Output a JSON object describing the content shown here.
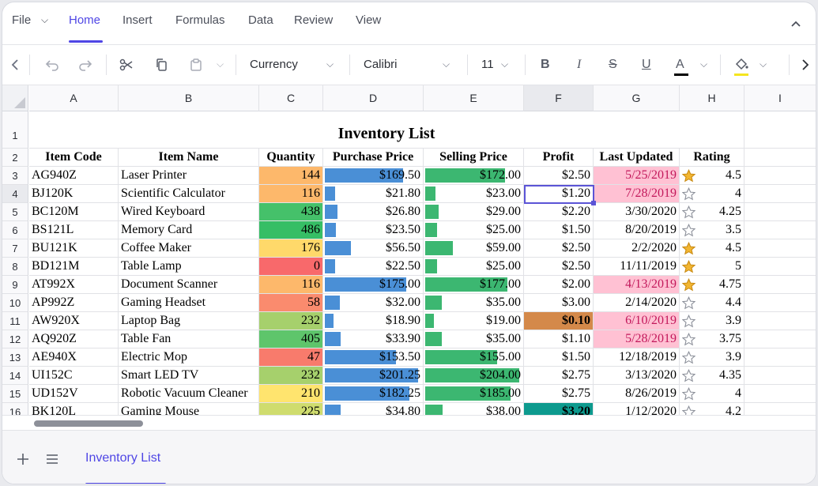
{
  "ribbon": {
    "tabs": [
      "File",
      "Home",
      "Insert",
      "Formulas",
      "Data",
      "Review",
      "View"
    ],
    "active_tab": "Home"
  },
  "toolbar": {
    "number_format": "Currency",
    "font_name": "Calibri",
    "font_size": "11",
    "font_color": "#000000",
    "fill_color": "#f5e51f"
  },
  "columns": [
    "A",
    "B",
    "C",
    "D",
    "E",
    "F",
    "G",
    "H",
    "I"
  ],
  "rows": [
    "1",
    "2",
    "3",
    "4",
    "5",
    "6",
    "7",
    "8",
    "9",
    "10",
    "11",
    "12",
    "13",
    "14",
    "15",
    "16"
  ],
  "sheet": {
    "title": "Inventory List",
    "headers": [
      "Item Code",
      "Item Name",
      "Quantity",
      "Purchase Price",
      "Selling Price",
      "Profit",
      "Last Updated",
      "Rating"
    ],
    "items": [
      {
        "code": "AG940Z",
        "name": "Laser Printer",
        "qty": "144",
        "purchase": "$169.50",
        "selling": "$172.00",
        "profit": "$2.50",
        "updated": "5/25/2019",
        "rating": "4.5"
      },
      {
        "code": "BJ120K",
        "name": "Scientific Calculator",
        "qty": "116",
        "purchase": "$21.80",
        "selling": "$23.00",
        "profit": "$1.20",
        "updated": "7/28/2019",
        "rating": "4"
      },
      {
        "code": "BC120M",
        "name": "Wired Keyboard",
        "qty": "438",
        "purchase": "$26.80",
        "selling": "$29.00",
        "profit": "$2.20",
        "updated": "3/30/2020",
        "rating": "4.25"
      },
      {
        "code": "BS121L",
        "name": "Memory Card",
        "qty": "486",
        "purchase": "$23.50",
        "selling": "$25.00",
        "profit": "$1.50",
        "updated": "8/20/2019",
        "rating": "3.5"
      },
      {
        "code": "BU121K",
        "name": "Coffee Maker",
        "qty": "176",
        "purchase": "$56.50",
        "selling": "$59.00",
        "profit": "$2.50",
        "updated": "2/2/2020",
        "rating": "4.5"
      },
      {
        "code": "BD121M",
        "name": "Table Lamp",
        "qty": "0",
        "purchase": "$22.50",
        "selling": "$25.00",
        "profit": "$2.50",
        "updated": "11/11/2019",
        "rating": "5"
      },
      {
        "code": "AT992X",
        "name": "Document Scanner",
        "qty": "116",
        "purchase": "$175.00",
        "selling": "$177.00",
        "profit": "$2.00",
        "updated": "4/13/2019",
        "rating": "4.75"
      },
      {
        "code": "AP992Z",
        "name": "Gaming Headset",
        "qty": "58",
        "purchase": "$32.00",
        "selling": "$35.00",
        "profit": "$3.00",
        "updated": "2/14/2020",
        "rating": "4.4"
      },
      {
        "code": "AW920X",
        "name": "Laptop Bag",
        "qty": "232",
        "purchase": "$18.90",
        "selling": "$19.00",
        "profit": "$0.10",
        "updated": "6/10/2019",
        "rating": "3.9"
      },
      {
        "code": "AQ920Z",
        "name": "Table Fan",
        "qty": "405",
        "purchase": "$33.90",
        "selling": "$35.00",
        "profit": "$1.10",
        "updated": "5/28/2019",
        "rating": "3.75"
      },
      {
        "code": "AE940X",
        "name": "Electric Mop",
        "qty": "47",
        "purchase": "$153.50",
        "selling": "$155.00",
        "profit": "$1.50",
        "updated": "12/18/2019",
        "rating": "3.9"
      },
      {
        "code": "UI152C",
        "name": "Smart LED TV",
        "qty": "232",
        "purchase": "$201.25",
        "selling": "$204.00",
        "profit": "$2.75",
        "updated": "3/13/2020",
        "rating": "4.35"
      },
      {
        "code": "UD152V",
        "name": "Robotic Vacuum Cleaner",
        "qty": "210",
        "purchase": "$182.25",
        "selling": "$185.00",
        "profit": "$2.75",
        "updated": "8/26/2019",
        "rating": "4"
      },
      {
        "code": "BK120L",
        "name": "Gaming Mouse",
        "qty": "225",
        "purchase": "$34.80",
        "selling": "$38.00",
        "profit": "$3.20",
        "updated": "1/12/2020",
        "rating": "4.2"
      }
    ]
  },
  "formatting": {
    "qty_colors": [
      "#fdb86b",
      "#fdb86b",
      "#45c16a",
      "#36be65",
      "#ffd96a",
      "#f8696b",
      "#fdb86b",
      "#fa8b6e",
      "#a6d06c",
      "#5ec56b",
      "#f87b6c",
      "#a6d06c",
      "#ffe46e",
      "#cfdc6e"
    ],
    "bar_purchase_color": "#4a8fd6",
    "bar_selling_color": "#3cb771",
    "pink_highlight": "#ffc1d3",
    "pink_text": "#c2185b",
    "pink_rows": [
      0,
      1,
      6,
      8,
      9
    ],
    "profit_low_color": "#d4894a",
    "profit_high_color": "#0d9a8e",
    "star_filled_rows": [
      0,
      4,
      5,
      6
    ],
    "active_cell": "F4"
  },
  "sheet_tabs": [
    "Inventory List"
  ]
}
